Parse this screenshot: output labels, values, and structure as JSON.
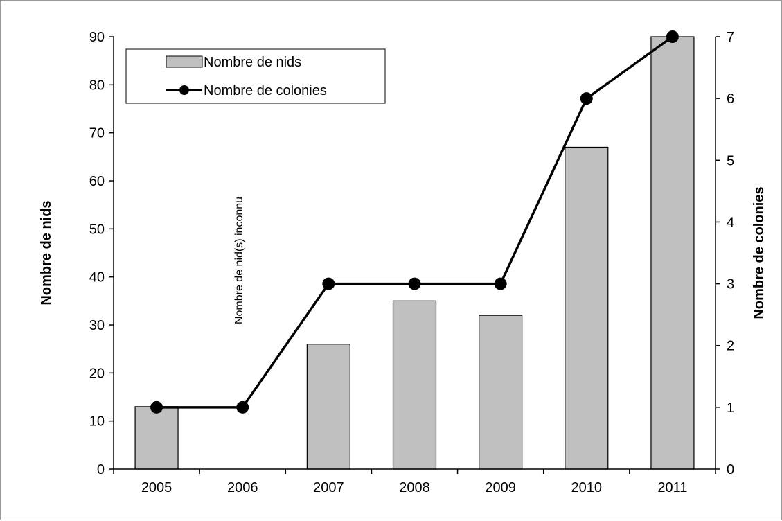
{
  "chart_data": {
    "type": "bar",
    "categories": [
      "2005",
      "2006",
      "2007",
      "2008",
      "2009",
      "2010",
      "2011"
    ],
    "series": [
      {
        "name": "Nombre de nids",
        "type": "bar",
        "axis": "left",
        "values": [
          13,
          null,
          26,
          35,
          32,
          67,
          90
        ]
      },
      {
        "name": "Nombre de colonies",
        "type": "line",
        "axis": "right",
        "values": [
          1,
          1,
          3,
          3,
          3,
          6,
          7
        ]
      }
    ],
    "ylabel": "Nombre de nids",
    "y2label": "Nombre de colonies",
    "ylim": [
      0,
      90
    ],
    "y2lim": [
      0,
      7
    ],
    "yticks": [
      "0",
      "10",
      "20",
      "30",
      "40",
      "50",
      "60",
      "70",
      "80",
      "90"
    ],
    "y2ticks": [
      "0",
      "1",
      "2",
      "3",
      "4",
      "5",
      "6",
      "7"
    ],
    "annotation": "Nombre de nid(s) inconnu",
    "legend_position": "top-left",
    "grid": false,
    "colors": {
      "bar_fill": "#c0c0c0",
      "bar_stroke": "#000000",
      "line": "#000000"
    }
  }
}
